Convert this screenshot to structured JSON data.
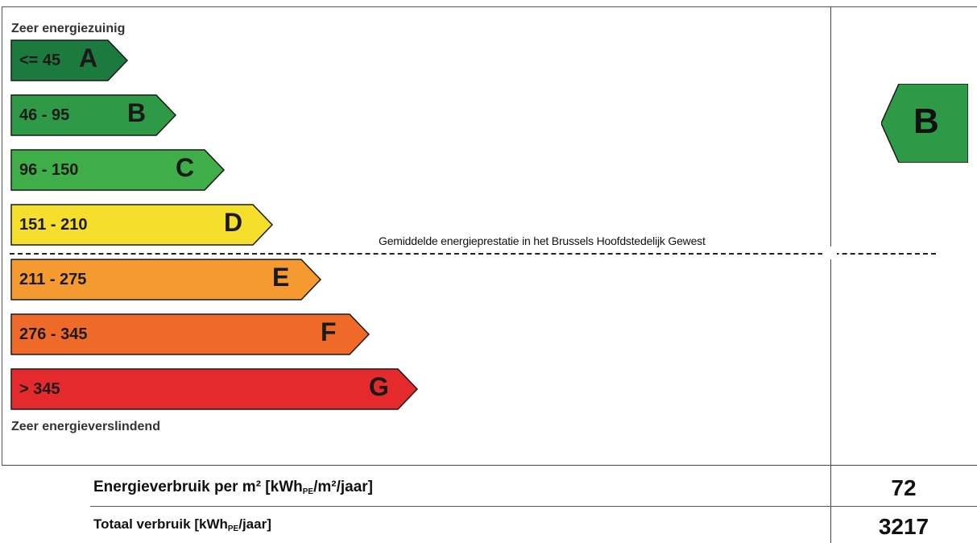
{
  "scale": {
    "top_label": "Zeer energiezuinig",
    "bottom_label": "Zeer energieverslindend",
    "classes": [
      {
        "letter": "A",
        "range": "<= 45",
        "color": "#1c7a3e"
      },
      {
        "letter": "B",
        "range": "46 - 95",
        "color": "#2e9947"
      },
      {
        "letter": "C",
        "range": "96 - 150",
        "color": "#3fae49"
      },
      {
        "letter": "D",
        "range": "151 - 210",
        "color": "#f6de2c"
      },
      {
        "letter": "E",
        "range": "211 - 275",
        "color": "#f49a30"
      },
      {
        "letter": "F",
        "range": "276 - 345",
        "color": "#ef6a28"
      },
      {
        "letter": "G",
        "range": "> 345",
        "color": "#e42a2c"
      }
    ]
  },
  "average": {
    "label": "Gemiddelde energieprestatie in het Brussels Hoofdstedelijk Gewest"
  },
  "result": {
    "letter": "B",
    "color": "#2e9947"
  },
  "rows": {
    "per_m2_label_pre": "Energieverbruik per m² [kWh",
    "per_m2_label_sub": "PE",
    "per_m2_label_post": "/m²/jaar]",
    "per_m2_value": "72",
    "total_label_pre": "Totaal verbruik [kWh",
    "total_label_sub": "PE",
    "total_label_post": "/jaar]",
    "total_value": "3217"
  }
}
